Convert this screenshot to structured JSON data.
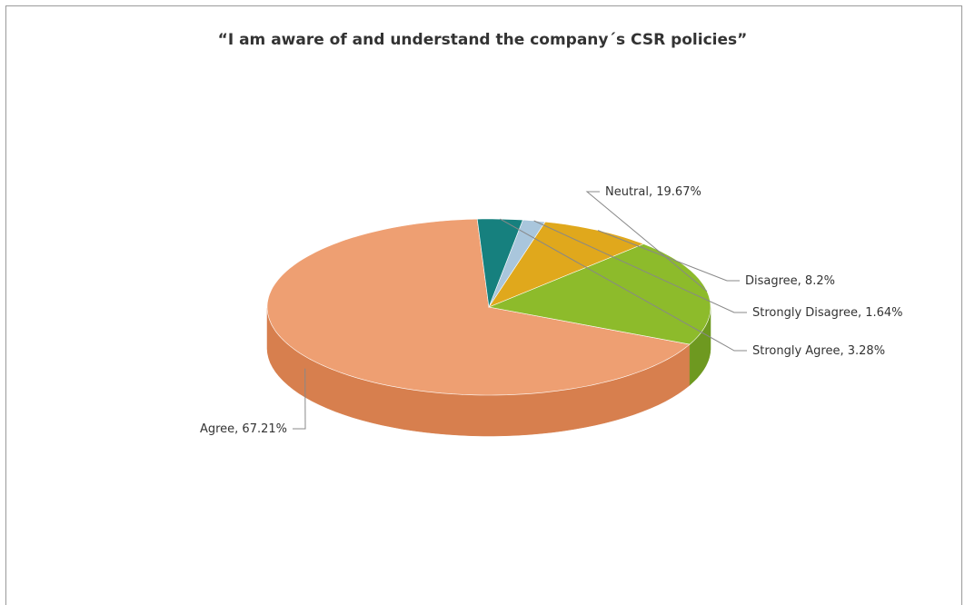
{
  "chart_data": {
    "type": "pie",
    "title": "“I am aware of and understand the company´s CSR policies”",
    "slices": [
      {
        "label": "Agree",
        "value": 67.21,
        "display": "Agree, 67.21%",
        "color": "#ee9f72",
        "side": "#d77f4e"
      },
      {
        "label": "Neutral",
        "value": 19.67,
        "display": "Neutral, 19.67%",
        "color": "#8dbb2b",
        "side": "#6e9920"
      },
      {
        "label": "Disagree",
        "value": 8.2,
        "display": "Disagree, 8.2%",
        "color": "#e0a81c",
        "side": "#b98913"
      },
      {
        "label": "Strongly Disagree",
        "value": 1.64,
        "display": "Strongly Disagree, 1.64%",
        "color": "#a9c6dc",
        "side": "#86a6bf"
      },
      {
        "label": "Strongly Agree",
        "value": 3.28,
        "display": "Strongly Agree, 3.28%",
        "color": "#16807e",
        "side": "#0f6362"
      }
    ]
  }
}
